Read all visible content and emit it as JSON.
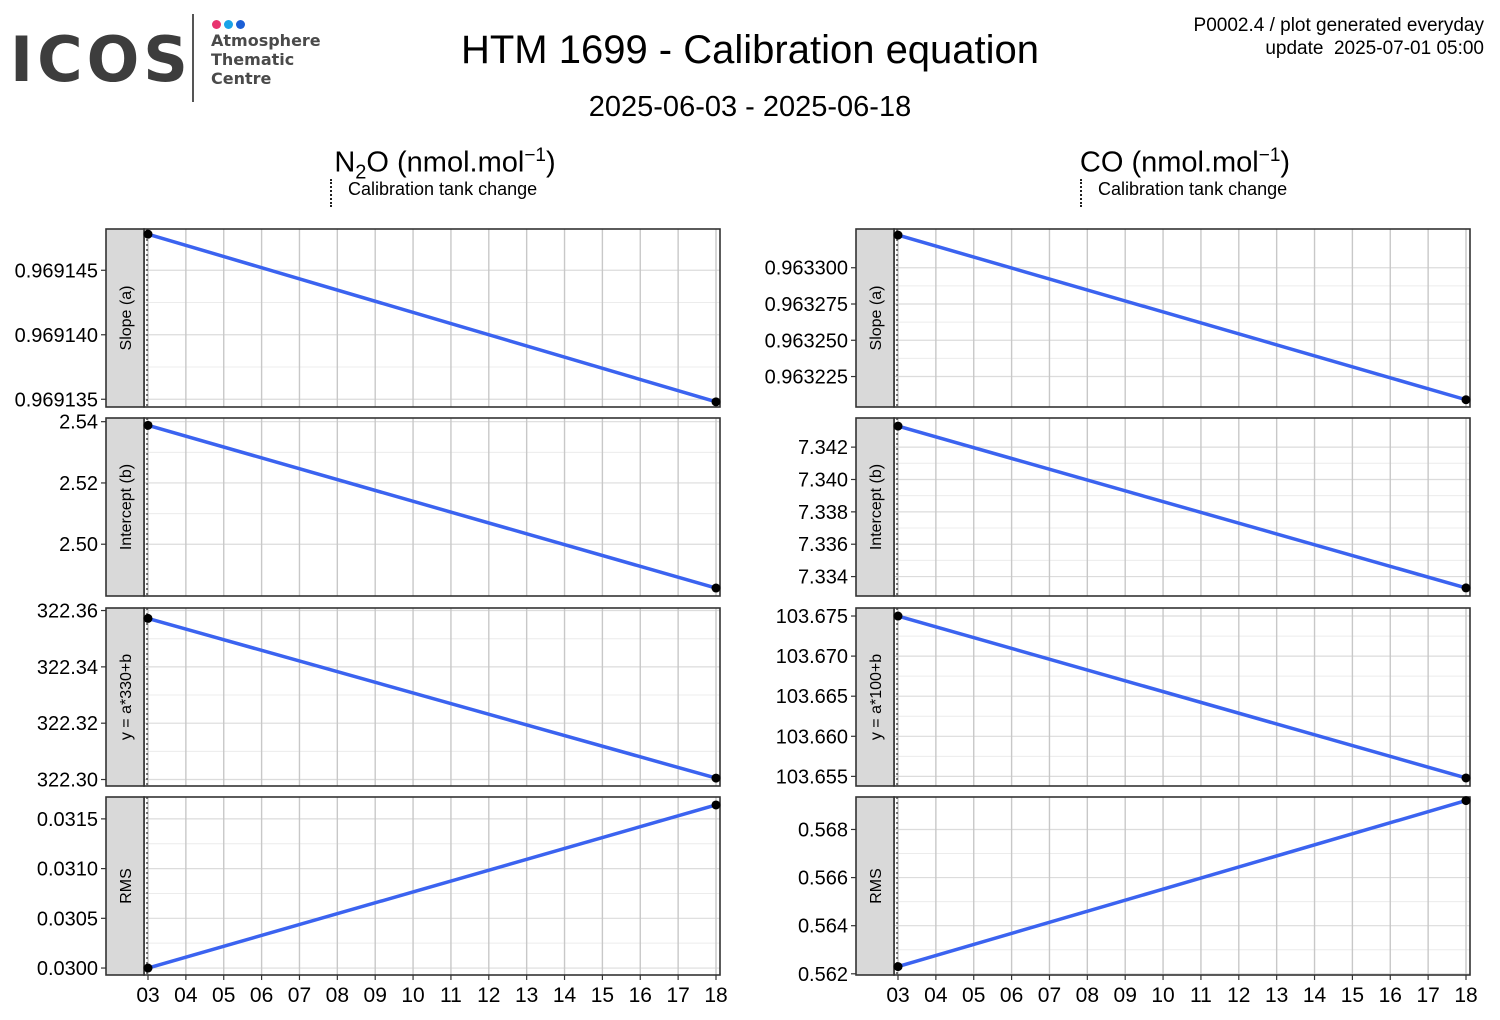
{
  "logo": {
    "wordmark": "ICOS",
    "lines": [
      "Atmosphere",
      "Thematic",
      "Centre"
    ],
    "dot_colors": [
      "#e8346f",
      "#1aa3e8",
      "#1c5fd6"
    ],
    "wordmark_color": "#3d3d3d"
  },
  "title": "HTM 1699 - Calibration equation",
  "subtitle": "2025-06-03 - 2025-06-18",
  "note": {
    "line1": "P0002.4 / plot generated everyday",
    "line2": "update  2025-07-01 05:00"
  },
  "legend_label": "Calibration tank change",
  "colors": {
    "line": "#3b63f0",
    "point": "#000000",
    "strip": "#d9d9d9",
    "grid": "#c8c8c8"
  },
  "chart_data": [
    {
      "type": "line",
      "title_parts": {
        "main": "N",
        "sub": "2",
        "rest": "O (nmol.mol",
        "sup": "−1",
        "end": ")"
      },
      "x": [
        "03",
        "18"
      ],
      "x_ticks": [
        "03",
        "04",
        "05",
        "06",
        "07",
        "08",
        "09",
        "10",
        "11",
        "12",
        "13",
        "14",
        "15",
        "16",
        "17",
        "18"
      ],
      "facets": [
        {
          "label": "Slope (a)",
          "ylim": [
            0.9691344,
            0.9691482
          ],
          "ticks": [
            0.969135,
            0.96914,
            0.969145
          ],
          "tick_labels": [
            "0.969135",
            "0.969140",
            "0.969145"
          ],
          "values": [
            0.9691478,
            0.9691348
          ]
        },
        {
          "label": "Intercept (b)",
          "ylim": [
            2.4831,
            2.5412
          ],
          "ticks": [
            2.5,
            2.52,
            2.54
          ],
          "tick_labels": [
            "2.50",
            "2.52",
            "2.54"
          ],
          "values": [
            2.5388,
            2.4857
          ]
        },
        {
          "label": "y = a*330+b",
          "ylim": [
            322.2977,
            322.3609
          ],
          "ticks": [
            322.3,
            322.32,
            322.34,
            322.36
          ],
          "tick_labels": [
            "322.30",
            "322.32",
            "322.34",
            "322.36"
          ],
          "values": [
            322.3572,
            322.3005
          ]
        },
        {
          "label": "RMS",
          "ylim": [
            0.02993,
            0.03172
          ],
          "ticks": [
            0.03,
            0.0305,
            0.031,
            0.0315
          ],
          "tick_labels": [
            "0.0300",
            "0.0305",
            "0.0310",
            "0.0315"
          ],
          "values": [
            0.03,
            0.03164
          ]
        }
      ]
    },
    {
      "type": "line",
      "title_parts": {
        "main": "CO (nmol.mol",
        "sub": "",
        "rest": "",
        "sup": "−1",
        "end": ")"
      },
      "x": [
        "03",
        "18"
      ],
      "x_ticks": [
        "03",
        "04",
        "05",
        "06",
        "07",
        "08",
        "09",
        "10",
        "11",
        "12",
        "13",
        "14",
        "15",
        "16",
        "17",
        "18"
      ],
      "facets": [
        {
          "label": "Slope (a)",
          "ylim": [
            0.963204,
            0.9633267
          ],
          "ticks": [
            0.963225,
            0.96325,
            0.963275,
            0.9633
          ],
          "tick_labels": [
            "0.963225",
            "0.963250",
            "0.963275",
            "0.963300"
          ],
          "values": [
            0.9633225,
            0.963209
          ]
        },
        {
          "label": "Intercept (b)",
          "ylim": [
            7.3328,
            7.3438
          ],
          "ticks": [
            7.334,
            7.336,
            7.338,
            7.34,
            7.342
          ],
          "tick_labels": [
            "7.334",
            "7.336",
            "7.338",
            "7.340",
            "7.342"
          ],
          "values": [
            7.3433,
            7.3333
          ]
        },
        {
          "label": "y = a*100+b",
          "ylim": [
            103.6538,
            103.676
          ],
          "ticks": [
            103.655,
            103.66,
            103.665,
            103.67,
            103.675
          ],
          "tick_labels": [
            "103.655",
            "103.660",
            "103.665",
            "103.670",
            "103.675"
          ],
          "values": [
            103.675,
            103.6548
          ]
        },
        {
          "label": "RMS",
          "ylim": [
            0.56195,
            0.56935
          ],
          "ticks": [
            0.562,
            0.564,
            0.566,
            0.568
          ],
          "tick_labels": [
            "0.562",
            "0.564",
            "0.566",
            "0.568"
          ],
          "values": [
            0.5623,
            0.5692
          ]
        }
      ]
    }
  ]
}
